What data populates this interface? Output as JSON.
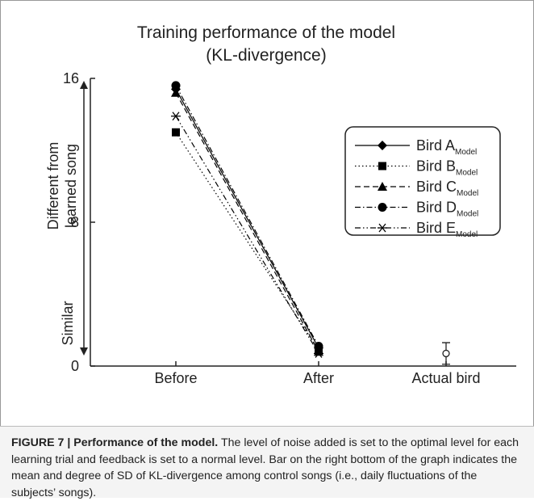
{
  "chart_data": {
    "type": "line",
    "title": [
      "Training performance of the model",
      "(KL-divergence)"
    ],
    "ylabel_top": [
      "Different from",
      "learned song"
    ],
    "ylabel_bottom": "Similar",
    "categories": [
      "Before",
      "After",
      "Actual bird"
    ],
    "ylim": [
      0,
      16
    ],
    "yticks": [
      0,
      8,
      16
    ],
    "series": [
      {
        "name": "Bird A",
        "subscript": "Model",
        "marker": "diamond",
        "dash": "solid",
        "color": "#000000",
        "values": [
          15.4,
          1.0,
          null
        ]
      },
      {
        "name": "Bird B",
        "subscript": "Model",
        "marker": "square",
        "dash": "dotted",
        "color": "#000000",
        "values": [
          13.0,
          0.9,
          null
        ]
      },
      {
        "name": "Bird C",
        "subscript": "Model",
        "marker": "triangle",
        "dash": "dashed",
        "color": "#000000",
        "values": [
          15.2,
          0.8,
          null
        ]
      },
      {
        "name": "Bird D",
        "subscript": "Model",
        "marker": "circle",
        "dash": "dashdot",
        "color": "#000000",
        "values": [
          15.6,
          1.1,
          null
        ]
      },
      {
        "name": "Bird E",
        "subscript": "Model",
        "marker": "asterisk",
        "dash": "dashdotdot",
        "color": "#000000",
        "values": [
          13.9,
          0.7,
          null
        ]
      }
    ],
    "actual_bird": {
      "value": 0.7,
      "error": 0.6
    }
  },
  "caption": {
    "label": "FIGURE 7 | Performance of the model.",
    "text": "The level of noise added is set to the optimal level for each learning trial and feedback is set to a normal level. Bar on the right bottom of the graph indicates the mean and degree of SD of KL-divergence among control songs (i.e., daily fluctuations of the subjects’ songs)."
  }
}
